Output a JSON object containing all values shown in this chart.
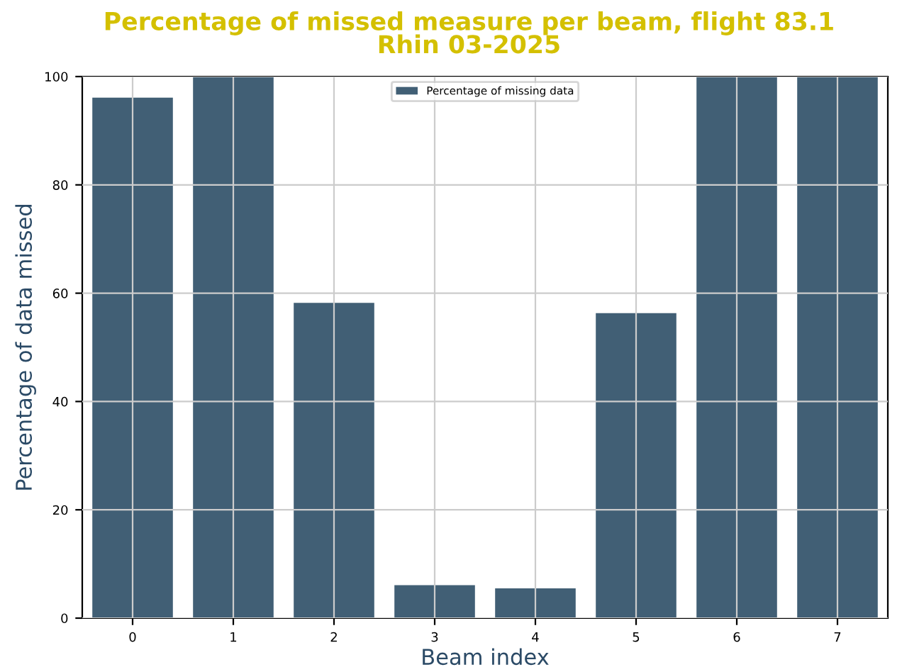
{
  "chart_data": {
    "type": "bar",
    "title": "Percentage of missed measure per beam, flight 83.1\nRhin 03-2025",
    "xlabel": "Beam index",
    "ylabel": "Percentage of data missed",
    "categories": [
      "0",
      "1",
      "2",
      "3",
      "4",
      "5",
      "6",
      "7"
    ],
    "series": [
      {
        "name": "Percentage of missing data",
        "color": "#415f75",
        "values": [
          96.1,
          100,
          58.2,
          6.1,
          5.5,
          56.3,
          100,
          100
        ]
      }
    ],
    "ylim": [
      0,
      100
    ],
    "yticks": [
      0,
      20,
      40,
      60,
      80,
      100
    ],
    "grid": true,
    "legend": "top"
  }
}
